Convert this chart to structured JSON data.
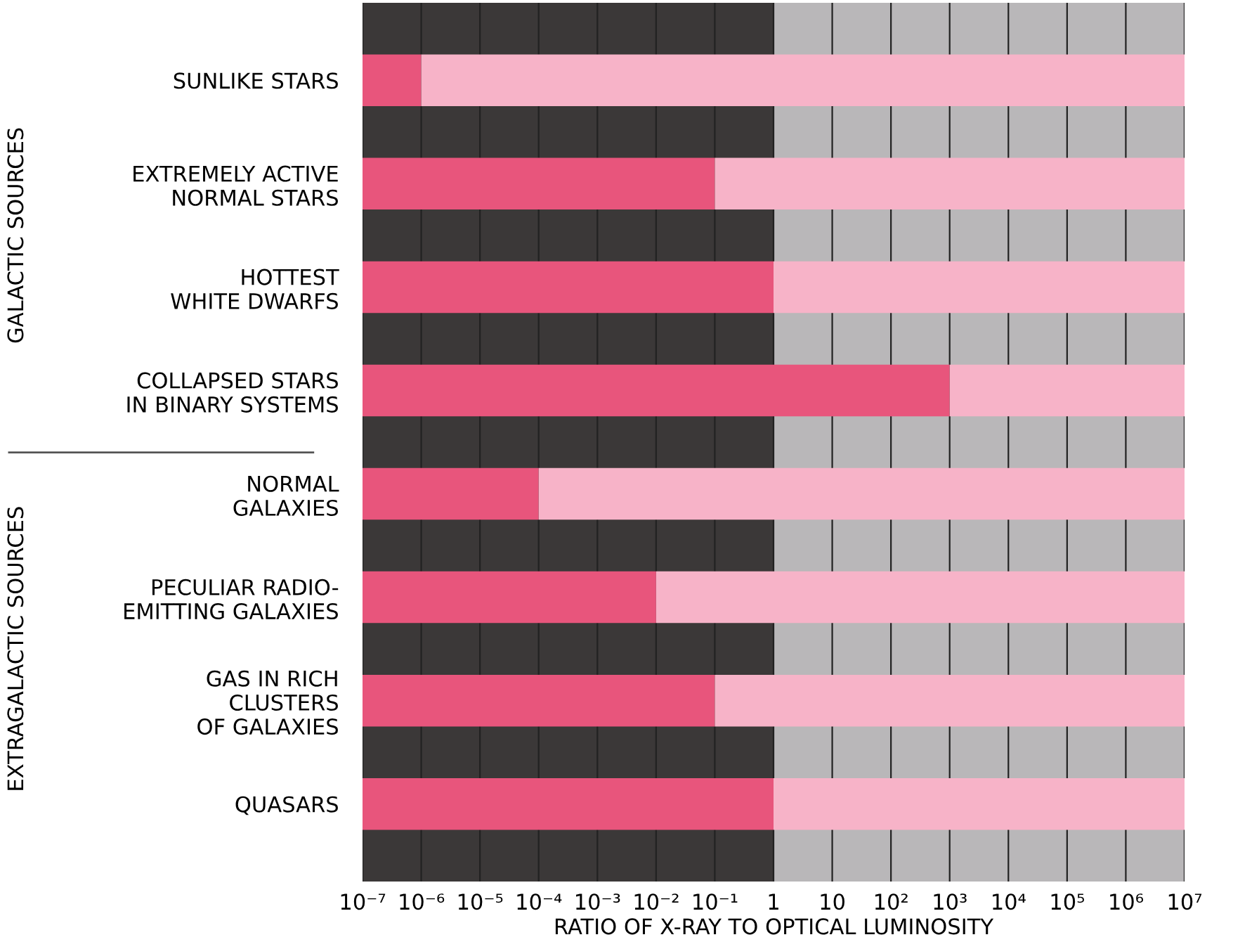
{
  "chart_data": {
    "type": "bar",
    "orientation": "horizontal",
    "log": "x",
    "xlabel": "RATIO OF X-RAY TO OPTICAL LUMINOSITY",
    "categories": [
      "SUNLIKE STARS",
      "EXTREMELY ACTIVE\nNORMAL STARS",
      "HOTTEST\nWHITE DWARFS",
      "COLLAPSED STARS\nIN BINARY SYSTEMS",
      "NORMAL\nGALAXIES",
      "PECULIAR RADIO-\nEMITTING GALAXIES",
      "GAS IN RICH\nCLUSTERS\nOF GALAXIES",
      "QUASARS"
    ],
    "stacked": true,
    "series": [
      {
        "color": "#e8557c",
        "values": [
          1e-06,
          0.1,
          1,
          1000.0,
          0.0001,
          0.01,
          0.1,
          1
        ]
      },
      {
        "color": "#f7b3c8",
        "values": [
          9999999.999999,
          9999999.9,
          9999999,
          9999000,
          9999999.9999,
          9999999.99,
          9999999.9,
          9999999
        ]
      }
    ],
    "xlim": [
      1e-07,
      10000000.0
    ],
    "xticks": [
      {
        "value": 1e-07,
        "label": "10⁻⁷"
      },
      {
        "value": 1e-06,
        "label": "10⁻⁶"
      },
      {
        "value": 1e-05,
        "label": "10⁻⁵"
      },
      {
        "value": 0.0001,
        "label": "10⁻⁴"
      },
      {
        "value": 0.001,
        "label": "10⁻³"
      },
      {
        "value": 0.01,
        "label": "10⁻²"
      },
      {
        "value": 0.1,
        "label": "10⁻¹"
      },
      1,
      10,
      {
        "value": 100,
        "label": "10²"
      },
      {
        "value": 1000,
        "label": "10³"
      },
      {
        "value": 10000,
        "label": "10⁴"
      },
      {
        "value": 100000,
        "label": "10⁵"
      },
      {
        "value": 1000000,
        "label": "10⁶"
      },
      {
        "value": 10000000,
        "label": "10⁷"
      }
    ],
    "bands": [
      {
        "axis": "x",
        "from": 1e-07,
        "to": 1,
        "color": "#3b3838"
      },
      {
        "axis": "x",
        "from": 1,
        "to": 10000000.0,
        "color": "#b9b7b9"
      }
    ],
    "grid": "x",
    "annotations": [
      "GALACTIC SOURCES",
      "EXTRAGALACTIC SOURCES"
    ]
  }
}
